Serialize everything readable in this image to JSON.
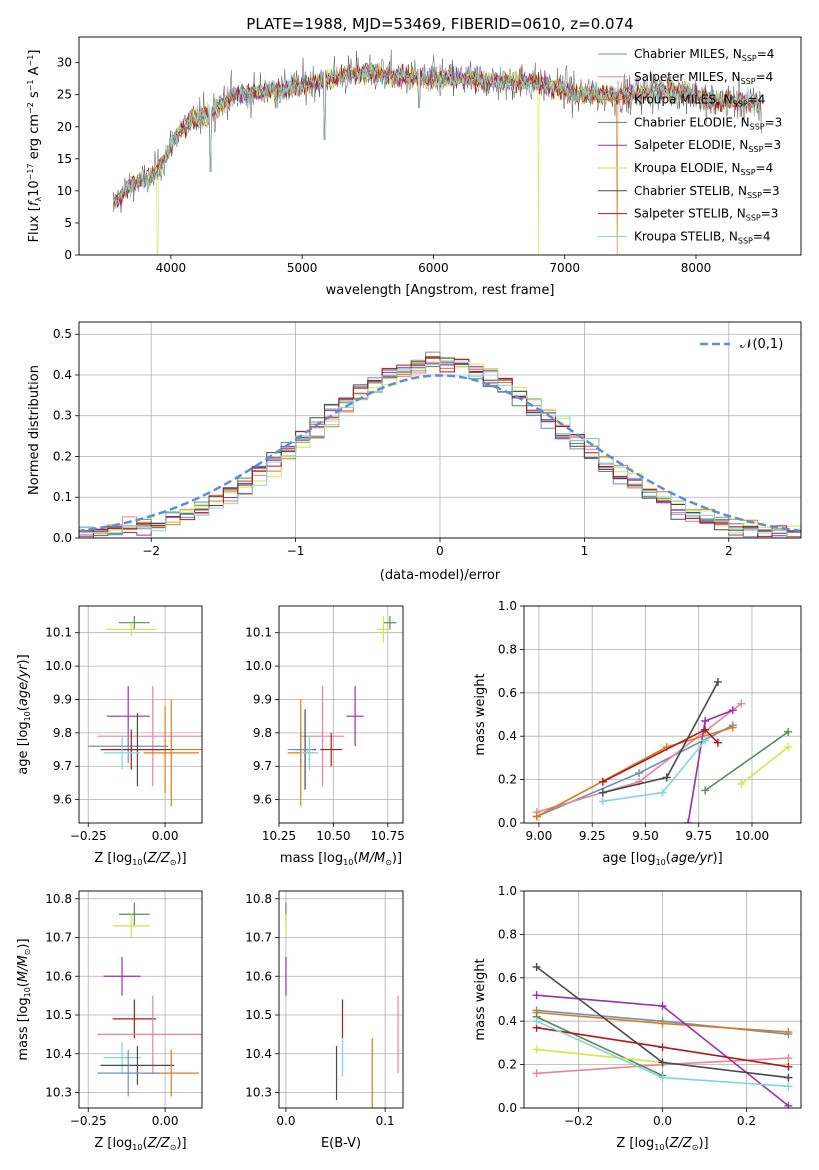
{
  "figure_title": "PLATE=1988, MJD=53469, FIBERID=0610, z=0.074",
  "models": [
    {
      "name": "Chabrier MILES",
      "nssp": "4",
      "color": "#6a93b8"
    },
    {
      "name": "Salpeter MILES",
      "nssp": "4",
      "color": "#e7849b"
    },
    {
      "name": "Kroupa MILES",
      "nssp": "4",
      "color": "#e07b1a"
    },
    {
      "name": "Chabrier ELODIE",
      "nssp": "3",
      "color": "#5a8a5a"
    },
    {
      "name": "Salpeter ELODIE",
      "nssp": "3",
      "color": "#9a2fb0"
    },
    {
      "name": "Kroupa ELODIE",
      "nssp": "4",
      "color": "#cfe84a"
    },
    {
      "name": "Chabrier STELIB",
      "nssp": "3",
      "color": "#4a4a4a"
    },
    {
      "name": "Salpeter STELIB",
      "nssp": "3",
      "color": "#b01818"
    },
    {
      "name": "Kroupa STELIB",
      "nssp": "4",
      "color": "#7fd6dc"
    }
  ],
  "nssp_prefix": "N",
  "nssp_sub": "SSP",
  "chart_data": [
    {
      "id": "spectrum",
      "type": "line",
      "xlabel": "wavelength [Angstrom, rest frame]",
      "ylabel": "Flux [f_λ 10^-17 erg cm^-2 s^-1 A^-1]",
      "xlim": [
        3300,
        8800
      ],
      "ylim": [
        0,
        34
      ],
      "xticks": [
        4000,
        5000,
        6000,
        7000,
        8000
      ],
      "yticks": [
        0,
        5,
        10,
        15,
        20,
        25,
        30
      ],
      "legend": "upper right",
      "continuum_x": [
        3560,
        3700,
        3850,
        3950,
        4050,
        4150,
        4300,
        4400,
        4500,
        4700,
        4900,
        5100,
        5300,
        5500,
        5700,
        5900,
        6100,
        6300,
        6500,
        6700,
        6900,
        7100,
        7300,
        7500,
        7700,
        7900,
        8100,
        8300,
        8500
      ],
      "continuum_y": [
        8,
        11,
        12,
        15,
        19,
        21,
        22,
        24,
        25,
        25.5,
        26,
        27,
        28,
        28.5,
        28,
        27.5,
        27.5,
        27.5,
        27,
        27,
        26.5,
        25,
        25,
        25,
        25.5,
        25.5,
        24,
        24,
        23.5
      ],
      "spikes": [
        {
          "x": 3900,
          "y": 0
        },
        {
          "x": 6800,
          "y": 0
        },
        {
          "x": 7400,
          "y": 0
        },
        {
          "x": 4300,
          "y": 13
        },
        {
          "x": 5170,
          "y": 18
        },
        {
          "x": 5890,
          "y": 23
        },
        {
          "x": 8500,
          "y": 19
        }
      ]
    },
    {
      "id": "residuals",
      "type": "histogram",
      "xlabel": "(data-model)/error",
      "ylabel": "Normed distribution",
      "xlim": [
        -2.5,
        2.5
      ],
      "ylim": [
        0,
        0.53
      ],
      "xticks": [
        -2,
        -1,
        0,
        1,
        2
      ],
      "yticks": [
        0.0,
        0.1,
        0.2,
        0.3,
        0.4,
        0.5
      ],
      "reference_label": "𝒩(0,1)",
      "reference_color": "#5b8fd6",
      "bin_width": 0.1
    },
    {
      "id": "age_vs_Z",
      "type": "scatter",
      "xlabel": "Z [log10(Z/Z⊙)]",
      "ylabel": "age [log10(age/yr)]",
      "xlim": [
        -0.28,
        0.12
      ],
      "ylim": [
        9.53,
        10.18
      ],
      "xticks": [
        -0.25,
        0.0
      ],
      "yticks": [
        9.6,
        9.7,
        9.8,
        9.9,
        10.0,
        10.1
      ],
      "points": [
        {
          "x": -0.1,
          "y": 10.13,
          "xerr": 0.05,
          "yerr": 0.02,
          "c": 3
        },
        {
          "x": -0.11,
          "y": 10.11,
          "xerr": 0.08,
          "yerr": 0.02,
          "c": 5
        },
        {
          "x": -0.12,
          "y": 9.85,
          "xerr": 0.07,
          "yerr": 0.09,
          "c": 4
        },
        {
          "x": -0.04,
          "y": 9.79,
          "xerr": 0.18,
          "yerr": 0.15,
          "c": 1
        },
        {
          "x": -0.12,
          "y": 9.76,
          "xerr": 0.13,
          "yerr": 0.05,
          "c": 0
        },
        {
          "x": 0.0,
          "y": 9.75,
          "xerr": 0.14,
          "yerr": 0.13,
          "c": 2
        },
        {
          "x": -0.09,
          "y": 9.75,
          "xerr": 0.12,
          "yerr": 0.11,
          "c": 6
        },
        {
          "x": -0.11,
          "y": 9.75,
          "xerr": 0.1,
          "yerr": 0.06,
          "c": 7
        },
        {
          "x": -0.14,
          "y": 9.74,
          "xerr": 0.06,
          "yerr": 0.05,
          "c": 8
        },
        {
          "x": 0.02,
          "y": 9.74,
          "xerr": 0.09,
          "yerr": 0.16,
          "c": 2
        }
      ]
    },
    {
      "id": "age_vs_mass",
      "type": "scatter",
      "xlabel": "mass [log10(M/M⊙)]",
      "ylabel": "",
      "xlim": [
        10.25,
        10.82
      ],
      "ylim": [
        9.53,
        10.18
      ],
      "xticks": [
        10.25,
        10.5,
        10.75
      ],
      "yticks": [
        9.6,
        9.7,
        9.8,
        9.9,
        10.0,
        10.1
      ],
      "points": [
        {
          "x": 10.76,
          "y": 10.13,
          "xerr": 0.03,
          "yerr": 0.02,
          "c": 3
        },
        {
          "x": 10.73,
          "y": 10.11,
          "xerr": 0.03,
          "yerr": 0.04,
          "c": 5
        },
        {
          "x": 10.6,
          "y": 9.85,
          "xerr": 0.04,
          "yerr": 0.09,
          "c": 4
        },
        {
          "x": 10.45,
          "y": 9.79,
          "xerr": 0.1,
          "yerr": 0.15,
          "c": 1
        },
        {
          "x": 10.49,
          "y": 9.75,
          "xerr": 0.05,
          "yerr": 0.05,
          "c": 7
        },
        {
          "x": 10.37,
          "y": 9.75,
          "xerr": 0.05,
          "yerr": 0.12,
          "c": 6
        },
        {
          "x": 10.35,
          "y": 9.75,
          "xerr": 0.06,
          "yerr": 0.05,
          "c": 0
        },
        {
          "x": 10.35,
          "y": 9.74,
          "xerr": 0.06,
          "yerr": 0.16,
          "c": 2
        },
        {
          "x": 10.39,
          "y": 9.74,
          "xerr": 0.04,
          "yerr": 0.05,
          "c": 8
        }
      ]
    },
    {
      "id": "weight_vs_age",
      "type": "line",
      "xlabel": "age [log10(age/yr)]",
      "ylabel": "mass weight",
      "xlim": [
        8.93,
        10.23
      ],
      "ylim": [
        0,
        1
      ],
      "xticks": [
        9.0,
        9.25,
        9.5,
        9.75,
        10.0
      ],
      "yticks": [
        0.0,
        0.2,
        0.4,
        0.6,
        0.8,
        1.0
      ],
      "series": [
        {
          "c": 0,
          "x": [
            8.99,
            9.47,
            9.91
          ],
          "y": [
            0.03,
            0.23,
            0.45
          ]
        },
        {
          "c": 1,
          "x": [
            8.99,
            9.47,
            9.95
          ],
          "y": [
            0.05,
            0.19,
            0.55
          ]
        },
        {
          "c": 2,
          "x": [
            8.99,
            9.6,
            9.91
          ],
          "y": [
            0.03,
            0.35,
            0.44
          ]
        },
        {
          "c": 3,
          "x": [
            9.78,
            10.17
          ],
          "y": [
            0.15,
            0.42
          ]
        },
        {
          "c": 4,
          "x": [
            9.7,
            9.78,
            9.91
          ],
          "y": [
            0.0,
            0.47,
            0.52
          ]
        },
        {
          "c": 5,
          "x": [
            9.95,
            10.17
          ],
          "y": [
            0.18,
            0.35
          ]
        },
        {
          "c": 6,
          "x": [
            9.3,
            9.6,
            9.84
          ],
          "y": [
            0.14,
            0.21,
            0.65
          ]
        },
        {
          "c": 7,
          "x": [
            9.3,
            9.78,
            9.84
          ],
          "y": [
            0.19,
            0.43,
            0.37
          ]
        },
        {
          "c": 8,
          "x": [
            9.3,
            9.58,
            9.78
          ],
          "y": [
            0.1,
            0.14,
            0.38
          ]
        }
      ]
    },
    {
      "id": "mass_vs_Z",
      "type": "scatter",
      "xlabel": "Z [log10(Z/Z⊙)]",
      "ylabel": "mass [log10(M/M⊙)]",
      "xlim": [
        -0.28,
        0.12
      ],
      "ylim": [
        10.26,
        10.82
      ],
      "xticks": [
        -0.25,
        0.0
      ],
      "yticks": [
        10.3,
        10.4,
        10.5,
        10.6,
        10.7,
        10.8
      ],
      "points": [
        {
          "x": -0.1,
          "y": 10.76,
          "xerr": 0.05,
          "yerr": 0.03,
          "c": 3
        },
        {
          "x": -0.11,
          "y": 10.73,
          "xerr": 0.06,
          "yerr": 0.03,
          "c": 5
        },
        {
          "x": -0.14,
          "y": 10.6,
          "xerr": 0.06,
          "yerr": 0.05,
          "c": 4
        },
        {
          "x": -0.1,
          "y": 10.49,
          "xerr": 0.07,
          "yerr": 0.05,
          "c": 7
        },
        {
          "x": -0.04,
          "y": 10.45,
          "xerr": 0.18,
          "yerr": 0.1,
          "c": 1
        },
        {
          "x": -0.14,
          "y": 10.39,
          "xerr": 0.06,
          "yerr": 0.04,
          "c": 8
        },
        {
          "x": -0.09,
          "y": 10.37,
          "xerr": 0.12,
          "yerr": 0.05,
          "c": 6
        },
        {
          "x": 0.02,
          "y": 10.35,
          "xerr": 0.09,
          "yerr": 0.06,
          "c": 2
        },
        {
          "x": -0.12,
          "y": 10.35,
          "xerr": 0.1,
          "yerr": 0.06,
          "c": 0
        }
      ]
    },
    {
      "id": "mass_vs_ebv",
      "type": "scatter",
      "xlabel": "E(B-V)",
      "ylabel": "",
      "xlim": [
        -0.007,
        0.118
      ],
      "ylim": [
        10.26,
        10.82
      ],
      "xticks": [
        0.0,
        0.1
      ],
      "yticks": [
        10.3,
        10.4,
        10.5,
        10.6,
        10.7,
        10.8
      ],
      "points": [
        {
          "x": 0.0,
          "y": 10.76,
          "xerr": 0,
          "yerr": 0.03,
          "c": 3
        },
        {
          "x": 0.0,
          "y": 10.73,
          "xerr": 0,
          "yerr": 0.03,
          "c": 5
        },
        {
          "x": 0.0,
          "y": 10.6,
          "xerr": 0,
          "yerr": 0.05,
          "c": 4
        },
        {
          "x": 0.057,
          "y": 10.49,
          "xerr": 0,
          "yerr": 0.05,
          "c": 7
        },
        {
          "x": 0.113,
          "y": 10.45,
          "xerr": 0,
          "yerr": 0.1,
          "c": 1
        },
        {
          "x": 0.057,
          "y": 10.39,
          "xerr": 0,
          "yerr": 0.05,
          "c": 8
        },
        {
          "x": 0.051,
          "y": 10.35,
          "xerr": 0,
          "yerr": 0.07,
          "c": 6
        },
        {
          "x": 0.087,
          "y": 10.35,
          "xerr": 0,
          "yerr": 0.09,
          "c": 2
        }
      ]
    },
    {
      "id": "weight_vs_Z",
      "type": "line",
      "xlabel": "Z [log10(Z/Z⊙)]",
      "ylabel": "mass weight",
      "xlim": [
        -0.33,
        0.33
      ],
      "ylim": [
        0,
        1
      ],
      "xticks": [
        -0.2,
        0.0,
        0.2
      ],
      "yticks": [
        0.0,
        0.2,
        0.4,
        0.6,
        0.8,
        1.0
      ],
      "series": [
        {
          "c": 0,
          "x": [
            -0.3,
            0.0,
            0.3
          ],
          "y": [
            0.45,
            0.4,
            0.34
          ]
        },
        {
          "c": 1,
          "x": [
            -0.3,
            0.0,
            0.3
          ],
          "y": [
            0.16,
            0.2,
            0.23
          ]
        },
        {
          "c": 2,
          "x": [
            -0.3,
            0.0,
            0.3
          ],
          "y": [
            0.44,
            0.39,
            0.35
          ]
        },
        {
          "c": 3,
          "x": [
            -0.3,
            0.0
          ],
          "y": [
            0.42,
            0.15
          ]
        },
        {
          "c": 4,
          "x": [
            -0.3,
            0.0,
            0.3
          ],
          "y": [
            0.52,
            0.47,
            0.01
          ]
        },
        {
          "c": 5,
          "x": [
            -0.3,
            0.0
          ],
          "y": [
            0.27,
            0.21
          ]
        },
        {
          "c": 6,
          "x": [
            -0.3,
            0.0,
            0.3
          ],
          "y": [
            0.65,
            0.21,
            0.14
          ]
        },
        {
          "c": 7,
          "x": [
            -0.3,
            0.0,
            0.3
          ],
          "y": [
            0.37,
            0.28,
            0.19
          ]
        },
        {
          "c": 8,
          "x": [
            -0.3,
            0.0,
            0.3
          ],
          "y": [
            0.4,
            0.14,
            0.1
          ]
        }
      ]
    }
  ]
}
